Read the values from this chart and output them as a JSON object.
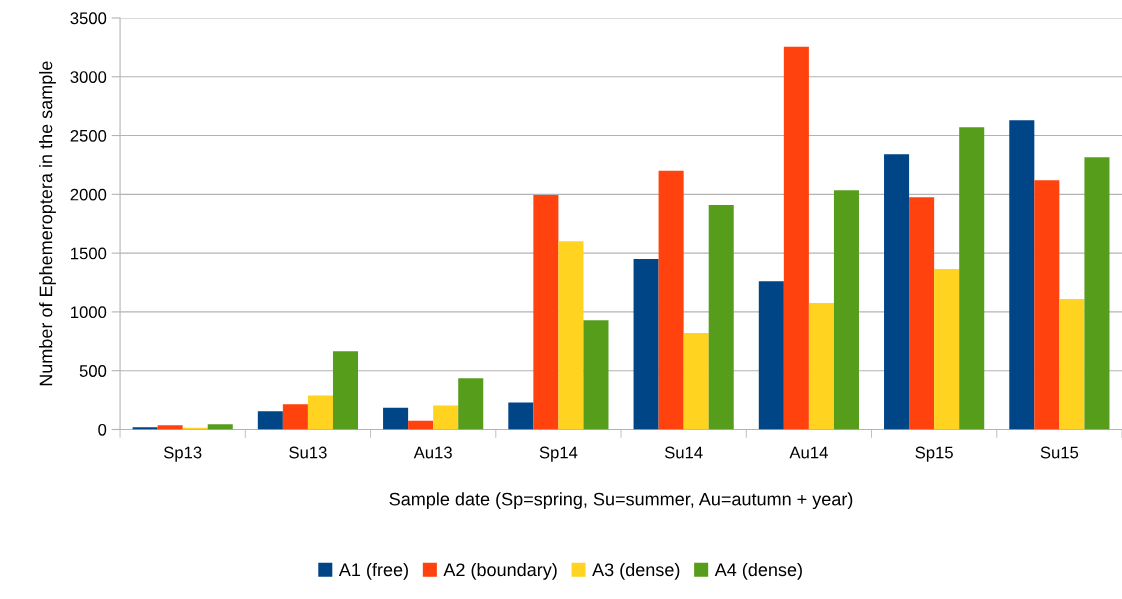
{
  "chart_data": {
    "type": "bar",
    "xlabel": "Sample date (Sp=spring, Su=summer, Au=autumn + year)",
    "ylabel": "Number of Ephemeroptera in the sample",
    "categories": [
      "Sp13",
      "Su13",
      "Au13",
      "Sp14",
      "Su14",
      "Au14",
      "Sp15",
      "Su15"
    ],
    "series": [
      {
        "name": "A1 (free)",
        "color": "#004586",
        "values": [
          20,
          155,
          185,
          230,
          1450,
          1260,
          2340,
          2630
        ]
      },
      {
        "name": "A2 (boundary)",
        "color": "#ff420e",
        "values": [
          35,
          215,
          75,
          1995,
          2200,
          3255,
          1975,
          2120
        ]
      },
      {
        "name": "A3 (dense)",
        "color": "#ffd320",
        "values": [
          15,
          290,
          205,
          1600,
          820,
          1075,
          1365,
          1110
        ]
      },
      {
        "name": "A4 (dense)",
        "color": "#579d1c",
        "values": [
          45,
          665,
          435,
          930,
          1910,
          2035,
          2570,
          2315
        ]
      }
    ],
    "ylim": [
      0,
      3500
    ],
    "yticks": [
      0,
      500,
      1000,
      1500,
      2000,
      2500,
      3000,
      3500
    ],
    "grid": "y",
    "legend": "bottom"
  }
}
